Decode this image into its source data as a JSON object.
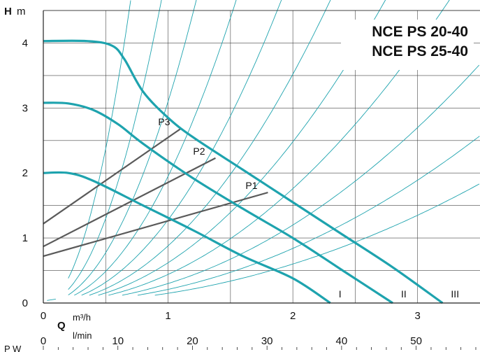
{
  "chart_data": {
    "type": "line",
    "title_lines": [
      "NCE PS 20-40",
      "NCE PS 25-40"
    ],
    "y_axis": {
      "letter": "H",
      "unit": "m",
      "range": [
        0,
        4.5
      ],
      "ticks": [
        "0",
        "1",
        "2",
        "3",
        "4"
      ]
    },
    "x_axis": {
      "letter": "Q",
      "unit_top": "m³/h",
      "unit_bottom": "l/min",
      "range": [
        0,
        3.5
      ],
      "ticks": [
        "0",
        "1",
        "2",
        "3"
      ],
      "lmin_ticks": [
        "0",
        "10",
        "20",
        "30",
        "40",
        "50"
      ],
      "lmin_range": [
        0,
        58
      ]
    },
    "cut_label": "P W",
    "grid": true,
    "speed_curves": [
      {
        "name": "I",
        "points": [
          [
            0,
            2.0
          ],
          [
            0.2,
            2.0
          ],
          [
            0.4,
            1.88
          ],
          [
            0.8,
            1.5
          ],
          [
            1.2,
            1.12
          ],
          [
            1.6,
            0.72
          ],
          [
            2.0,
            0.38
          ],
          [
            2.3,
            0.0
          ]
        ]
      },
      {
        "name": "II",
        "points": [
          [
            0,
            3.08
          ],
          [
            0.2,
            3.07
          ],
          [
            0.4,
            2.97
          ],
          [
            0.6,
            2.75
          ],
          [
            0.8,
            2.45
          ],
          [
            1.2,
            1.92
          ],
          [
            1.6,
            1.45
          ],
          [
            2.0,
            1.0
          ],
          [
            2.4,
            0.5
          ],
          [
            2.8,
            0.0
          ]
        ]
      },
      {
        "name": "III",
        "points": [
          [
            0,
            4.03
          ],
          [
            0.35,
            4.03
          ],
          [
            0.55,
            3.96
          ],
          [
            0.65,
            3.75
          ],
          [
            0.8,
            3.25
          ],
          [
            1.0,
            2.85
          ],
          [
            1.2,
            2.55
          ],
          [
            1.6,
            2.05
          ],
          [
            2.0,
            1.55
          ],
          [
            2.4,
            1.05
          ],
          [
            2.8,
            0.55
          ],
          [
            3.2,
            0.0
          ]
        ]
      }
    ],
    "power_lines": [
      {
        "name": "P1",
        "from": [
          0,
          0.72
        ],
        "to": [
          1.8,
          1.7
        ]
      },
      {
        "name": "P2",
        "from": [
          0,
          0.87
        ],
        "to": [
          1.38,
          2.23
        ]
      },
      {
        "name": "P3",
        "from": [
          0,
          1.22
        ],
        "to": [
          1.1,
          2.68
        ]
      }
    ],
    "system_curve_k": [
      9.5,
      5.2,
      3.1,
      1.95,
      1.28,
      0.88,
      0.62,
      0.44,
      0.3,
      0.21,
      0.15
    ],
    "colors": {
      "curve": "#1ea3ae",
      "power": "#5a5a5a",
      "grid": "#444444",
      "system": "#1ea3ae"
    }
  }
}
